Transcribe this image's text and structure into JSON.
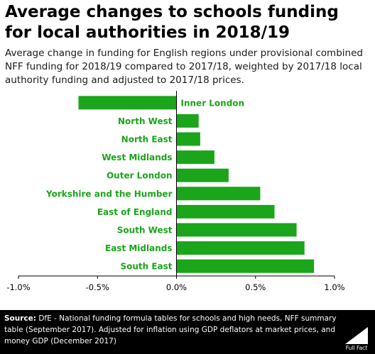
{
  "title": "Average changes to schools funding for local authorities in 2018/19",
  "subtitle": "Average change in funding for English regions under provisional combined NFF funding for 2018/19 compared to 2017/18, weighted by 2017/18 local authority funding and adjusted to 2017/18 prices.",
  "source_label": "Source:",
  "source_text": "DfE - National funding formula tables for schools and high needs, NFF summary table (September 2017). Adjusted for inflation using GDP deflators at market prices, and money GDP (December 2017)",
  "logo_text": "Full Fact",
  "colors": {
    "bar": "#1aa51a",
    "label": "#1aa51a",
    "footer_bg": "#000000"
  },
  "chart_data": {
    "type": "bar",
    "orientation": "horizontal",
    "categories": [
      "Inner London",
      "North West",
      "North East",
      "West Midlands",
      "Outer London",
      "Yorkshire and the Humber",
      "East of England",
      "South West",
      "East Midlands",
      "South East"
    ],
    "values": [
      -0.62,
      0.14,
      0.15,
      0.24,
      0.33,
      0.53,
      0.62,
      0.76,
      0.81,
      0.87
    ],
    "xlim": [
      -1.0,
      1.0
    ],
    "xticks": [
      -1.0,
      -0.5,
      0.0,
      0.5,
      1.0
    ],
    "xtick_labels": [
      "-1.0%",
      "-0.5%",
      "0.0%",
      "0.5%",
      "1.0%"
    ],
    "grid": false,
    "legend": "none"
  }
}
